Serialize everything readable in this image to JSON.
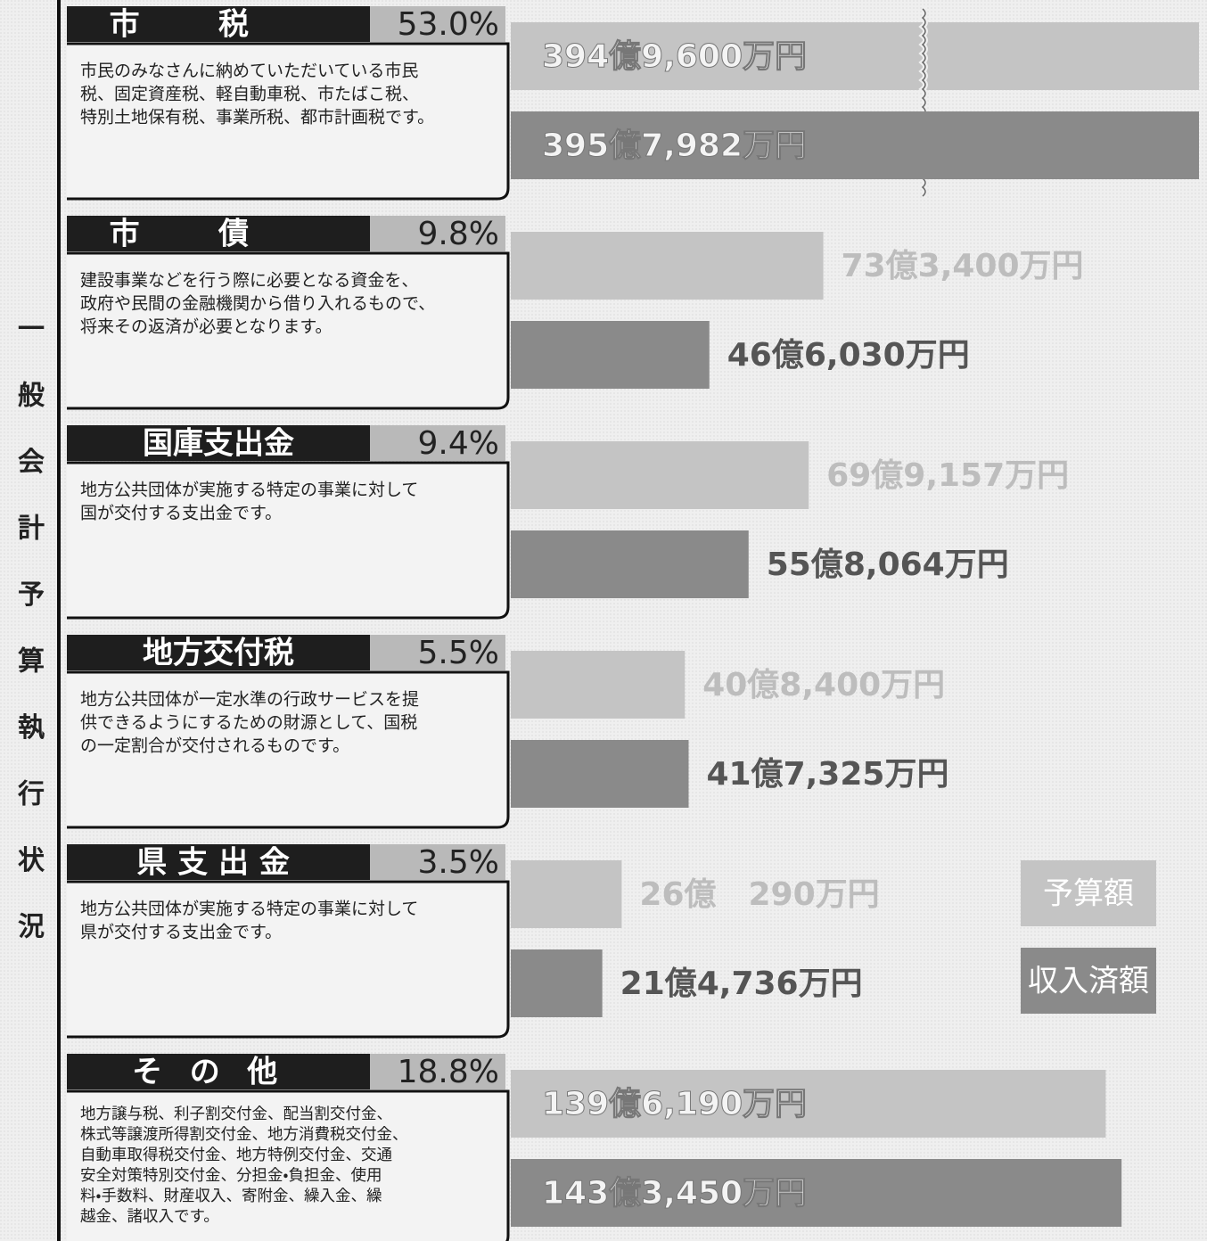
{
  "chart_data": {
    "type": "bar",
    "orientation": "horizontal",
    "title": "一般会計予算執行状況",
    "categories": [
      "市税",
      "市債",
      "国庫支出金",
      "地方交付税",
      "県支出金",
      "その他"
    ],
    "shares": [
      "53.0%",
      "9.8%",
      "9.4%",
      "5.5%",
      "3.5%",
      "18.8%"
    ],
    "descriptions": [
      [
        "市民のみなさんに納めていただいている市民",
        "税、固定資産税、軽自動車税、市たばこ税、",
        "特別土地保有税、事業所税、都市計画税です。"
      ],
      [
        "建設事業などを行う際に必要となる資金を、",
        "政府や民間の金融機関から借り入れるもので、",
        "将来その返済が必要となります。"
      ],
      [
        "地方公共団体が実施する特定の事業に対して",
        "国が交付する支出金です。"
      ],
      [
        "地方公共団体が一定水準の行政サービスを提",
        "供できるようにするための財源として、国税",
        "の一定割合が交付されるものです。"
      ],
      [
        "地方公共団体が実施する特定の事業に対して",
        "県が交付する支出金です。"
      ],
      [
        "地方譲与税、利子割交付金、配当割交付金、",
        "株式等譲渡所得割交付金、地方消費税交付金、",
        "自動車取得税交付金、地方特例交付金、交通",
        "安全対策特別交付金、分担金・負担金、使用",
        "料・手数料、財産収入、寄附金、繰入金、繰",
        "越金、諸収入です。"
      ]
    ],
    "series": [
      {
        "name": "予算額",
        "color": "#c4c4c4",
        "values": [
          3949600,
          733400,
          699157,
          408400,
          260290,
          1396190
        ],
        "value_labels": [
          "394億9,600万円",
          "73億3,400万円",
          "69億9,157万円",
          "40億8,400万円",
          "26億　290万円",
          "139億6,190万円"
        ]
      },
      {
        "name": "収入済額",
        "color": "#8a8a8a",
        "values": [
          3957982,
          466030,
          558064,
          417325,
          214736,
          1433450
        ],
        "value_labels": [
          "395億7,982万円",
          "46億6,030万円",
          "55億8,064万円",
          "41億7,325万円",
          "21億4,736万円",
          "143億3,450万円"
        ]
      }
    ],
    "axis_break": true
  }
}
